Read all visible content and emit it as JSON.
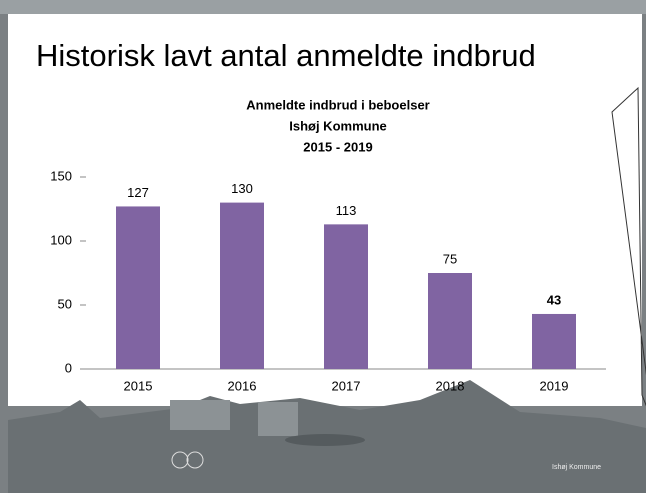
{
  "heading": "Historisk lavt antal anmeldte indbrud",
  "logo_text": "Ishøj Kommune",
  "chart_data": {
    "type": "bar",
    "title": [
      "Anmeldte indbrud i beboelser",
      "Ishøj Kommune",
      "2015 - 2019"
    ],
    "categories": [
      "2015",
      "2016",
      "2017",
      "2018",
      "2019"
    ],
    "values": [
      127,
      130,
      113,
      75,
      43
    ],
    "bold_value_labels": [
      false,
      false,
      false,
      false,
      true
    ],
    "color": "#8064a2",
    "ylim": [
      0,
      150
    ],
    "yticks": [
      0,
      50,
      100,
      150
    ],
    "grid": false
  }
}
